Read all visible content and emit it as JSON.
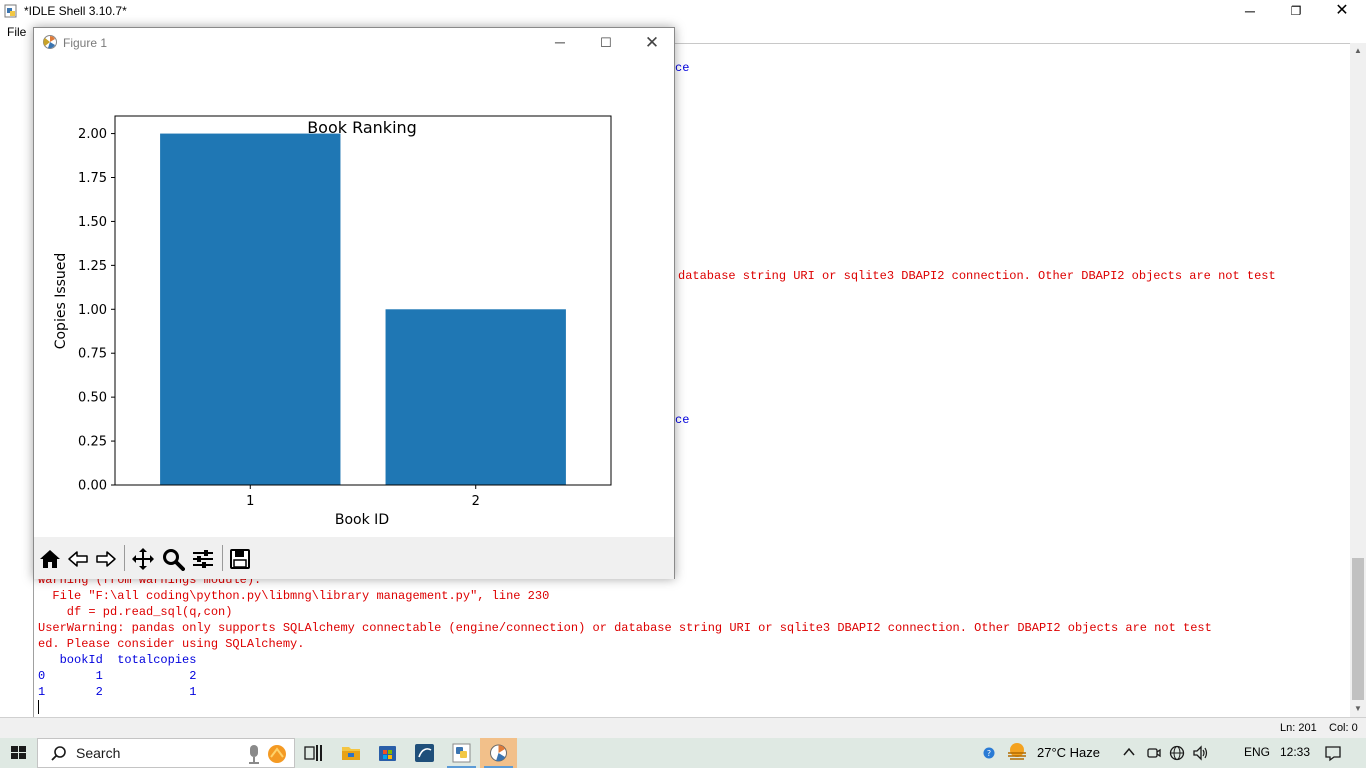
{
  "idle": {
    "title": "*IDLE Shell 3.10.7*",
    "menu": {
      "file": "File"
    },
    "controls": {
      "minimize": "─",
      "maximize": "❐",
      "close": "✕"
    },
    "status": {
      "line": "Ln: 201",
      "col": "Col: 0"
    }
  },
  "shell_lines": [
    {
      "text": "ce",
      "style": "blue"
    },
    {
      "text": "database string URI or sqlite3 DBAPI2 connection. Other DBAPI2 objects are not test",
      "style": "red"
    },
    {
      "text": "ce",
      "style": "blue"
    },
    {
      "text": "Warning (from warnings module):",
      "style": "red"
    },
    {
      "text": "  File \"F:\\all coding\\python.py\\libmng\\library management.py\", line 230",
      "style": "red"
    },
    {
      "text": "    df = pd.read_sql(q,con)",
      "style": "red"
    },
    {
      "text": "UserWarning: pandas only supports SQLAlchemy connectable (engine/connection) or database string URI or sqlite3 DBAPI2 connection. Other DBAPI2 objects are not test",
      "style": "red"
    },
    {
      "text": "ed. Please consider using SQLAlchemy.",
      "style": "red"
    },
    {
      "text": "   bookId  totalcopies",
      "style": "blue"
    },
    {
      "text": "0       1            2",
      "style": "blue"
    },
    {
      "text": "1       2            1",
      "style": "blue"
    }
  ],
  "figure": {
    "title": "Figure 1",
    "controls": {
      "minimize": "─",
      "maximize": "☐",
      "close": "✕"
    },
    "toolbar": [
      "home-icon",
      "back-icon",
      "forward-icon",
      "pan-icon",
      "zoom-icon",
      "configure-icon",
      "save-icon"
    ]
  },
  "chart_data": {
    "type": "bar",
    "title": "Book Ranking",
    "xlabel": "Book ID",
    "ylabel": "Copies Issued",
    "categories": [
      "1",
      "2"
    ],
    "values": [
      2,
      1
    ],
    "ylim": [
      0,
      2.1
    ],
    "yticks": [
      "0.00",
      "0.25",
      "0.50",
      "0.75",
      "1.00",
      "1.25",
      "1.50",
      "1.75",
      "2.00"
    ],
    "bar_color": "#1f77b4",
    "grid": false
  },
  "taskbar": {
    "search_placeholder": "Search",
    "weather": "27°C  Haze",
    "language": "ENG",
    "time": "12:33"
  }
}
